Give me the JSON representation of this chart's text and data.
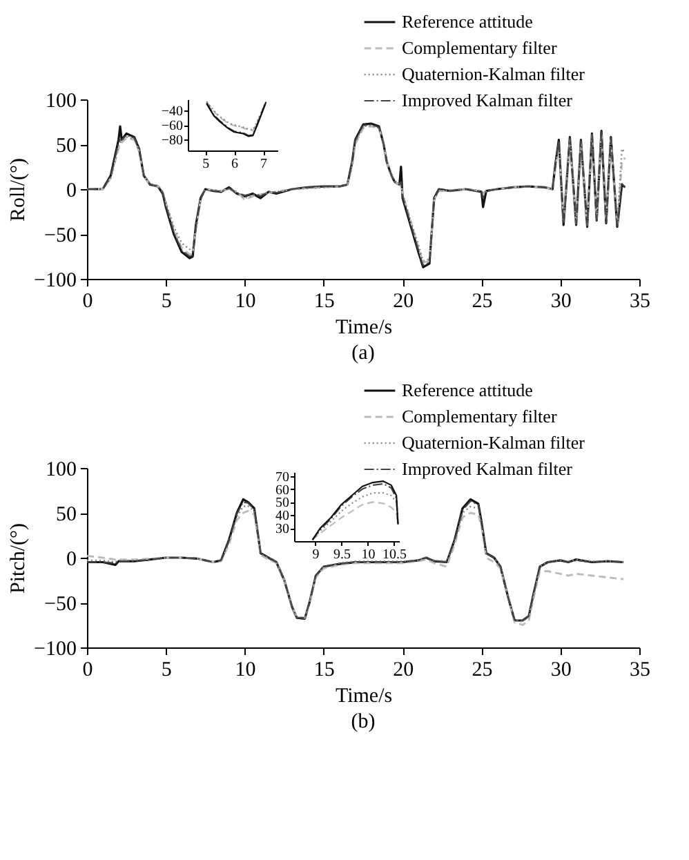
{
  "chart_data": [
    {
      "type": "line",
      "xlabel": "Time/s",
      "ylabel": "Roll/(°)",
      "annotations": [
        "(a)"
      ],
      "legend": "top right",
      "grid": false,
      "xlim": [
        0,
        35
      ],
      "ylim": [
        -100,
        100
      ],
      "xticks": [
        0,
        5,
        10,
        15,
        20,
        25,
        30,
        35
      ],
      "yticks": [
        -100,
        -50,
        0,
        50,
        100
      ],
      "x": [
        0,
        1,
        1.5,
        2,
        2.1,
        2.2,
        2.5,
        3,
        3.3,
        3.6,
        4,
        4.5,
        4.8,
        5,
        5.5,
        6,
        6.5,
        6.7,
        6.9,
        7.2,
        7.5,
        8,
        8.5,
        9,
        9.5,
        10,
        10.5,
        11,
        11.5,
        12,
        13,
        14,
        15,
        16,
        16.5,
        16.8,
        17,
        17.5,
        18,
        18.5,
        18.8,
        19,
        19.3,
        19.5,
        19.8,
        19.9,
        20,
        20.5,
        21,
        21.3,
        21.7,
        22,
        22.3,
        23,
        24,
        25,
        25.1,
        25.3,
        26,
        27,
        28,
        29,
        29.5,
        29.7,
        29.9,
        30.2,
        30.6,
        31,
        31.3,
        31.7,
        32,
        32.3,
        32.6,
        32.9,
        33.2,
        33.6,
        33.9,
        34.1
      ],
      "series": [
        {
          "name": "Reference attitude",
          "color": "#111111",
          "line_style": "solid",
          "values": [
            0,
            0,
            15,
            55,
            70,
            55,
            62,
            58,
            45,
            15,
            5,
            3,
            -5,
            -20,
            -50,
            -70,
            -77,
            -75,
            -40,
            -10,
            0,
            -2,
            -3,
            2,
            -5,
            -8,
            -5,
            -10,
            -3,
            -5,
            0,
            2,
            3,
            3,
            5,
            30,
            55,
            72,
            73,
            70,
            50,
            30,
            15,
            8,
            5,
            25,
            -10,
            -40,
            -70,
            -87,
            -83,
            -10,
            0,
            -2,
            0,
            -3,
            -20,
            -2,
            0,
            2,
            3,
            2,
            0,
            30,
            55,
            -40,
            58,
            -40,
            55,
            -42,
            62,
            -35,
            65,
            -38,
            58,
            -42,
            5,
            2
          ]
        },
        {
          "name": "Complementary filter",
          "color": "#bbbbbb",
          "line_style": "dashed",
          "values": [
            0,
            0,
            12,
            45,
            50,
            52,
            57,
            55,
            42,
            14,
            5,
            3,
            -3,
            -15,
            -45,
            -65,
            -73,
            -72,
            -45,
            -12,
            0,
            -1,
            -2,
            0,
            -3,
            -12,
            -8,
            -6,
            -4,
            -3,
            0,
            1,
            2,
            3,
            5,
            25,
            50,
            68,
            70,
            68,
            50,
            30,
            15,
            8,
            5,
            5,
            -5,
            -35,
            -65,
            -82,
            -80,
            -12,
            -2,
            -2,
            0,
            -2,
            -5,
            -2,
            0,
            2,
            3,
            2,
            0,
            25,
            50,
            -35,
            55,
            -38,
            52,
            -40,
            60,
            -33,
            62,
            -36,
            55,
            -40,
            30,
            35
          ]
        },
        {
          "name": "Quaternion-Kalman filter",
          "color": "#888888",
          "line_style": "dotted",
          "values": [
            0,
            0,
            12,
            48,
            52,
            54,
            58,
            56,
            44,
            16,
            6,
            4,
            -3,
            -15,
            -42,
            -60,
            -67,
            -66,
            -45,
            -12,
            0,
            -1,
            -2,
            0,
            -4,
            -10,
            -7,
            -6,
            -4,
            -3,
            0,
            1,
            2,
            3,
            5,
            27,
            52,
            70,
            71,
            68,
            52,
            32,
            17,
            9,
            6,
            6,
            -5,
            -35,
            -62,
            -80,
            -78,
            -12,
            -2,
            -1,
            0,
            -2,
            -5,
            -2,
            0,
            2,
            3,
            2,
            0,
            28,
            52,
            -38,
            56,
            -40,
            53,
            -41,
            61,
            -34,
            64,
            -37,
            57,
            -41,
            45,
            40
          ]
        },
        {
          "name": "Improved Kalman filter",
          "color": "#444444",
          "line_style": "dashdot",
          "values": [
            0,
            0,
            14,
            52,
            55,
            55,
            60,
            57,
            44,
            15,
            5,
            3,
            -4,
            -18,
            -48,
            -68,
            -75,
            -74,
            -42,
            -11,
            0,
            -2,
            -3,
            1,
            -4,
            -7,
            -5,
            -8,
            -3,
            -4,
            0,
            2,
            3,
            3,
            5,
            29,
            54,
            71,
            72,
            69,
            50,
            30,
            15,
            8,
            5,
            8,
            -8,
            -38,
            -68,
            -85,
            -82,
            -11,
            0,
            -2,
            0,
            -3,
            -10,
            -2,
            0,
            2,
            3,
            2,
            0,
            29,
            54,
            -39,
            57,
            -39,
            54,
            -41,
            61,
            -34,
            64,
            -37,
            57,
            -41,
            6,
            2
          ]
        }
      ]
    },
    {
      "type": "line",
      "grid": false,
      "xlim": [
        4.4,
        7.5
      ],
      "ylim": [
        -96,
        -24
      ],
      "xticks": [
        5,
        6,
        7
      ],
      "yticks": [
        -40,
        -60,
        -80
      ],
      "x": [
        5.05,
        5.3,
        5.5,
        5.8,
        6.0,
        6.3,
        6.5,
        6.65,
        6.8,
        7.1
      ],
      "series": [
        {
          "color": "#bbbbbb",
          "line_style": "dashed",
          "values": [
            -27,
            -41,
            -49,
            -58,
            -61,
            -64,
            -67,
            -68,
            -56,
            -27
          ]
        },
        {
          "color": "#888888",
          "line_style": "dotted",
          "values": [
            -27,
            -40,
            -48,
            -57,
            -60,
            -63,
            -66,
            -67,
            -55,
            -27
          ]
        },
        {
          "color": "#444444",
          "line_style": "dashdot",
          "values": [
            -29,
            -46,
            -54,
            -64,
            -69,
            -71,
            -75,
            -74,
            -59,
            -28
          ]
        },
        {
          "color": "#111111",
          "line_style": "solid",
          "values": [
            -30,
            -47,
            -55,
            -65,
            -70,
            -72,
            -76,
            -75,
            -60,
            -28
          ]
        }
      ]
    },
    {
      "type": "line",
      "xlabel": "Time/s",
      "ylabel": "Pitch/(°)",
      "annotations": [
        "(b)"
      ],
      "legend": "top right",
      "grid": false,
      "xlim": [
        0,
        35
      ],
      "ylim": [
        -100,
        100
      ],
      "xticks": [
        0,
        5,
        10,
        15,
        20,
        25,
        30,
        35
      ],
      "yticks": [
        -100,
        -50,
        0,
        50,
        100
      ],
      "x": [
        0,
        1,
        1.8,
        2,
        3,
        4,
        5,
        6,
        7,
        8,
        8.5,
        9,
        9.5,
        9.9,
        10.2,
        10.6,
        10.8,
        11,
        11.5,
        12,
        12.5,
        13,
        13.3,
        13.8,
        14.1,
        14.5,
        15,
        16,
        17,
        18,
        19,
        20,
        21,
        21.5,
        22,
        22.8,
        23.3,
        23.8,
        24.3,
        24.8,
        25,
        25.3,
        25.8,
        26.2,
        26.7,
        27.1,
        27.6,
        28,
        28.3,
        28.7,
        29.2,
        30,
        30.5,
        31,
        32,
        33,
        34
      ],
      "series": [
        {
          "name": "Reference attitude",
          "color": "#111111",
          "line_style": "solid",
          "values": [
            -5,
            -5,
            -8,
            -4,
            -4,
            -2,
            0,
            0,
            -1,
            -5,
            -3,
            20,
            50,
            65,
            62,
            55,
            30,
            5,
            0,
            -5,
            -25,
            -55,
            -67,
            -68,
            -50,
            -20,
            -10,
            -7,
            -5,
            -5,
            -5,
            -5,
            -3,
            0,
            -4,
            -5,
            20,
            55,
            65,
            60,
            40,
            5,
            0,
            -10,
            -45,
            -70,
            -70,
            -65,
            -40,
            -10,
            -5,
            -3,
            -5,
            -2,
            -5,
            -4,
            -5
          ]
        },
        {
          "name": "Complementary filter",
          "color": "#bbbbbb",
          "line_style": "dashed",
          "values": [
            2,
            0,
            -2,
            -2,
            -2,
            -1,
            0,
            0,
            -1,
            -5,
            -4,
            15,
            42,
            50,
            52,
            48,
            28,
            3,
            -2,
            -6,
            -25,
            -55,
            -66,
            -67,
            -52,
            -22,
            -12,
            -8,
            -6,
            -6,
            -6,
            -6,
            -4,
            -2,
            -6,
            -10,
            15,
            45,
            50,
            48,
            35,
            0,
            -5,
            -12,
            -45,
            -72,
            -75,
            -70,
            -45,
            -15,
            -15,
            -18,
            -20,
            -18,
            -20,
            -22,
            -24
          ]
        },
        {
          "name": "Quaternion-Kalman filter",
          "color": "#888888",
          "line_style": "dotted",
          "values": [
            -3,
            -3,
            -5,
            -3,
            -3,
            -2,
            0,
            0,
            -1,
            -5,
            -3,
            18,
            46,
            57,
            58,
            52,
            29,
            4,
            0,
            -4,
            -24,
            -54,
            -66,
            -67,
            -50,
            -20,
            -10,
            -6,
            -4,
            -4,
            -4,
            -4,
            -3,
            0,
            -3,
            -4,
            18,
            50,
            57,
            55,
            38,
            4,
            0,
            -9,
            -44,
            -70,
            -71,
            -66,
            -42,
            -10,
            -5,
            -3,
            -4,
            -2,
            -4,
            -4,
            -5
          ]
        },
        {
          "name": "Improved Kalman filter",
          "color": "#444444",
          "line_style": "dashdot",
          "values": [
            -5,
            -5,
            -6,
            -4,
            -4,
            -2,
            0,
            0,
            -1,
            -5,
            -3,
            19,
            49,
            62,
            61,
            54,
            30,
            5,
            0,
            -5,
            -25,
            -55,
            -67,
            -67,
            -50,
            -20,
            -10,
            -7,
            -5,
            -5,
            -5,
            -5,
            -3,
            0,
            -4,
            -5,
            19,
            53,
            63,
            59,
            39,
            5,
            0,
            -10,
            -45,
            -70,
            -70,
            -65,
            -40,
            -10,
            -5,
            -3,
            -5,
            -3,
            -5,
            -4,
            -5
          ]
        }
      ]
    },
    {
      "type": "line",
      "grid": false,
      "xlim": [
        8.6,
        10.6
      ],
      "ylim": [
        20,
        73
      ],
      "xticks": [
        9,
        9.5,
        10,
        10.5
      ],
      "yticks": [
        30,
        40,
        50,
        60,
        70
      ],
      "x": [
        8.95,
        9.1,
        9.3,
        9.5,
        9.7,
        9.9,
        10.1,
        10.3,
        10.45,
        10.55,
        10.58
      ],
      "series": [
        {
          "color": "#bbbbbb",
          "line_style": "dashed",
          "values": [
            21,
            26,
            32,
            38,
            43,
            48,
            50,
            49,
            46,
            42,
            33
          ]
        },
        {
          "color": "#888888",
          "line_style": "dotted",
          "values": [
            21,
            28,
            35,
            43,
            49,
            54,
            57,
            57,
            55,
            50,
            33
          ]
        },
        {
          "color": "#444444",
          "line_style": "dashdot",
          "values": [
            21,
            29,
            37,
            47,
            54,
            60,
            63,
            64,
            61,
            53,
            33
          ]
        },
        {
          "color": "#111111",
          "line_style": "solid",
          "values": [
            21,
            30,
            38,
            48,
            55,
            62,
            65,
            66,
            63,
            55,
            33
          ]
        }
      ]
    }
  ]
}
